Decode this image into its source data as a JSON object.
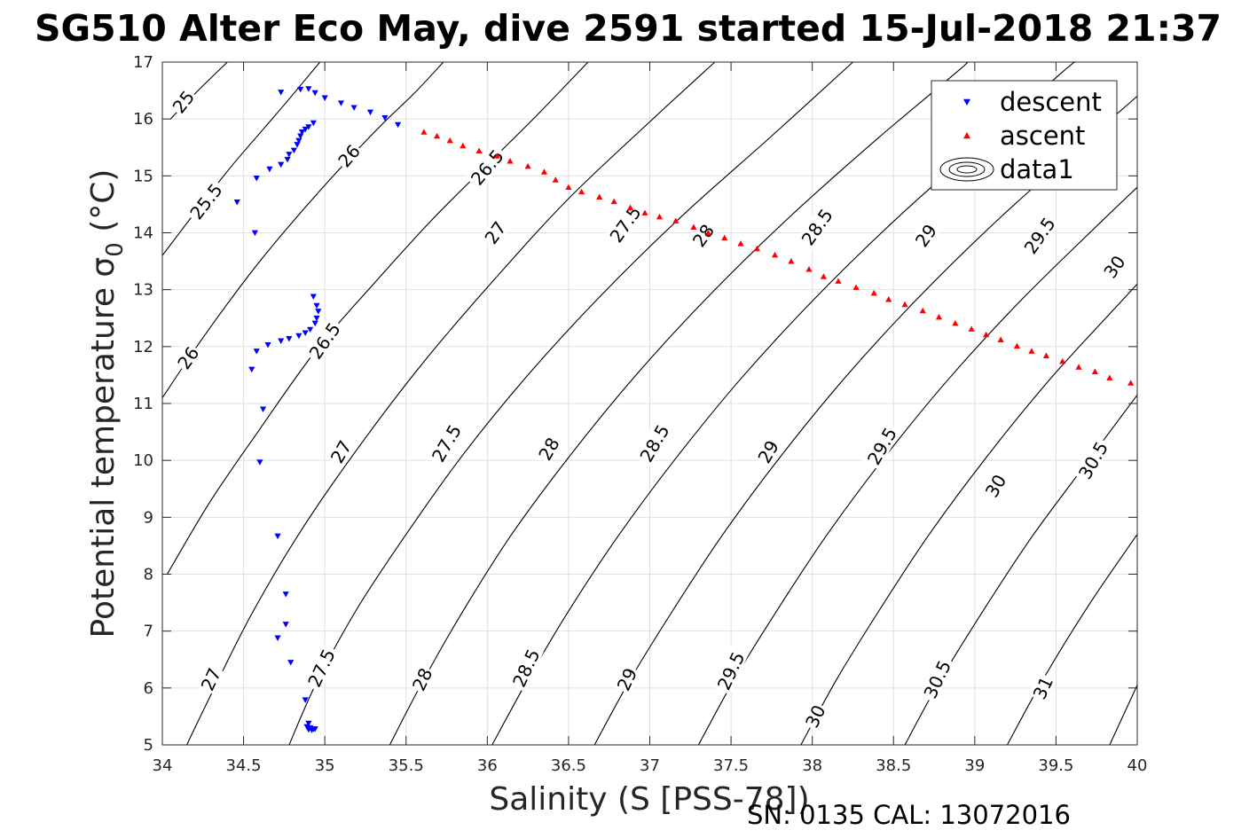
{
  "chart_data": {
    "type": "scatter",
    "title": "SG510 Alter Eco May, dive 2591 started 15-Jul-2018 21:37",
    "xlabel": "Salinity (S [PSS-78])",
    "ylabel_main": "Potential temperature σ",
    "ylabel_sub": "0",
    "ylabel_unit": " (°C)",
    "footer": "SN: 0135  CAL: 13072016",
    "xlim": [
      34,
      40
    ],
    "ylim": [
      5,
      17
    ],
    "xticks": [
      "34",
      "34.5",
      "35",
      "35.5",
      "36",
      "36.5",
      "37",
      "37.5",
      "38",
      "38.5",
      "39",
      "39.5",
      "40"
    ],
    "yticks": [
      "5",
      "6",
      "7",
      "8",
      "9",
      "10",
      "11",
      "12",
      "13",
      "14",
      "15",
      "16",
      "17"
    ],
    "grid": true,
    "legend_position": "top-right",
    "colors": {
      "descent": "#0000ff",
      "ascent": "#ff0000",
      "contour": "#000000",
      "grid": "#e0e0e0"
    },
    "series": [
      {
        "name": "descent",
        "marker": "triangle-down",
        "color": "#0000ff",
        "points": [
          [
            34.9,
            16.53
          ],
          [
            34.85,
            16.52
          ],
          [
            34.73,
            16.47
          ],
          [
            34.94,
            16.46
          ],
          [
            35.0,
            16.37
          ],
          [
            35.1,
            16.28
          ],
          [
            35.18,
            16.2
          ],
          [
            35.28,
            16.12
          ],
          [
            35.37,
            16.02
          ],
          [
            35.45,
            15.9
          ],
          [
            34.93,
            15.93
          ],
          [
            34.9,
            15.86
          ],
          [
            34.88,
            15.82
          ],
          [
            34.86,
            15.77
          ],
          [
            34.85,
            15.7
          ],
          [
            34.84,
            15.62
          ],
          [
            34.83,
            15.55
          ],
          [
            34.81,
            15.45
          ],
          [
            34.78,
            15.38
          ],
          [
            34.77,
            15.29
          ],
          [
            34.73,
            15.2
          ],
          [
            34.66,
            15.12
          ],
          [
            34.58,
            14.96
          ],
          [
            34.46,
            14.54
          ],
          [
            34.57,
            14.0
          ],
          [
            34.93,
            12.88
          ],
          [
            34.95,
            12.72
          ],
          [
            34.96,
            12.62
          ],
          [
            34.95,
            12.5
          ],
          [
            34.94,
            12.41
          ],
          [
            34.91,
            12.3
          ],
          [
            34.88,
            12.24
          ],
          [
            34.84,
            12.19
          ],
          [
            34.78,
            12.14
          ],
          [
            34.73,
            12.1
          ],
          [
            34.65,
            12.03
          ],
          [
            34.58,
            11.92
          ],
          [
            34.55,
            11.6
          ],
          [
            34.62,
            10.9
          ],
          [
            34.6,
            9.97
          ],
          [
            34.71,
            8.67
          ],
          [
            34.76,
            7.65
          ],
          [
            34.76,
            7.12
          ],
          [
            34.71,
            6.88
          ],
          [
            34.79,
            6.45
          ],
          [
            34.88,
            5.79
          ],
          [
            34.9,
            5.38
          ],
          [
            34.89,
            5.32
          ],
          [
            34.91,
            5.3
          ],
          [
            34.93,
            5.28
          ],
          [
            34.94,
            5.28
          ],
          [
            34.9,
            5.27
          ],
          [
            34.92,
            5.26
          ]
        ]
      },
      {
        "name": "ascent",
        "marker": "triangle-up",
        "color": "#ff0000",
        "points": [
          [
            35.61,
            15.77
          ],
          [
            35.69,
            15.7
          ],
          [
            35.77,
            15.62
          ],
          [
            35.85,
            15.53
          ],
          [
            35.95,
            15.44
          ],
          [
            36.06,
            15.35
          ],
          [
            36.14,
            15.26
          ],
          [
            36.25,
            15.17
          ],
          [
            36.35,
            15.07
          ],
          [
            36.42,
            14.93
          ],
          [
            36.5,
            14.8
          ],
          [
            36.58,
            14.72
          ],
          [
            36.69,
            14.63
          ],
          [
            36.78,
            14.55
          ],
          [
            36.88,
            14.44
          ],
          [
            36.97,
            14.35
          ],
          [
            37.06,
            14.28
          ],
          [
            37.16,
            14.21
          ],
          [
            37.27,
            14.1
          ],
          [
            37.36,
            14.0
          ],
          [
            37.46,
            13.91
          ],
          [
            37.56,
            13.81
          ],
          [
            37.66,
            13.72
          ],
          [
            37.77,
            13.61
          ],
          [
            37.87,
            13.5
          ],
          [
            37.98,
            13.36
          ],
          [
            38.07,
            13.23
          ],
          [
            38.16,
            13.15
          ],
          [
            38.27,
            13.04
          ],
          [
            38.38,
            12.94
          ],
          [
            38.47,
            12.83
          ],
          [
            38.57,
            12.74
          ],
          [
            38.68,
            12.63
          ],
          [
            38.78,
            12.52
          ],
          [
            38.88,
            12.41
          ],
          [
            38.98,
            12.31
          ],
          [
            39.07,
            12.21
          ],
          [
            39.16,
            12.12
          ],
          [
            39.26,
            12.01
          ],
          [
            39.35,
            11.92
          ],
          [
            39.44,
            11.84
          ],
          [
            39.54,
            11.74
          ],
          [
            39.64,
            11.64
          ],
          [
            39.74,
            11.56
          ],
          [
            39.83,
            11.45
          ],
          [
            39.96,
            11.36
          ]
        ]
      }
    ],
    "contour_series_name": "data1",
    "isopycnals": [
      {
        "level": "25",
        "points": [
          [
            34.05,
            16.0
          ],
          [
            34.22,
            16.5
          ],
          [
            34.4,
            17.0
          ]
        ]
      },
      {
        "level": "25.5",
        "points": [
          [
            34.0,
            13.6
          ],
          [
            34.2,
            14.35
          ],
          [
            34.42,
            15.15
          ],
          [
            34.63,
            15.85
          ],
          [
            34.78,
            16.35
          ],
          [
            34.97,
            17.0
          ]
        ]
      },
      {
        "level": "26",
        "points": [
          [
            34.0,
            11.1
          ],
          [
            34.2,
            11.95
          ],
          [
            34.4,
            12.75
          ],
          [
            34.6,
            13.5
          ],
          [
            34.85,
            14.35
          ],
          [
            35.1,
            15.15
          ],
          [
            35.35,
            15.9
          ],
          [
            35.55,
            16.45
          ],
          [
            35.73,
            17.0
          ]
        ]
      },
      {
        "level": "26.5",
        "points": [
          [
            34.03,
            8.0
          ],
          [
            34.3,
            9.3
          ],
          [
            34.6,
            10.55
          ],
          [
            34.95,
            11.95
          ],
          [
            35.3,
            13.1
          ],
          [
            35.65,
            14.2
          ],
          [
            36.0,
            15.2
          ],
          [
            36.3,
            16.05
          ],
          [
            36.62,
            17.0
          ]
        ]
      },
      {
        "level": "27",
        "points": [
          [
            34.15,
            5.0
          ],
          [
            34.32,
            6.0
          ],
          [
            34.55,
            7.3
          ],
          [
            34.85,
            8.75
          ],
          [
            35.2,
            10.2
          ],
          [
            35.6,
            11.7
          ],
          [
            36.05,
            13.2
          ],
          [
            36.5,
            14.6
          ],
          [
            37.0,
            15.95
          ],
          [
            37.4,
            17.0
          ]
        ]
      },
      {
        "level": "27.5",
        "points": [
          [
            34.78,
            5.0
          ],
          [
            34.95,
            6.1
          ],
          [
            35.2,
            7.4
          ],
          [
            35.5,
            8.7
          ],
          [
            35.85,
            10.1
          ],
          [
            36.25,
            11.5
          ],
          [
            36.7,
            12.9
          ],
          [
            37.2,
            14.3
          ],
          [
            37.75,
            15.7
          ],
          [
            38.25,
            17.0
          ]
        ]
      },
      {
        "level": "28",
        "points": [
          [
            35.4,
            5.0
          ],
          [
            35.6,
            6.1
          ],
          [
            35.85,
            7.35
          ],
          [
            36.15,
            8.7
          ],
          [
            36.5,
            10.05
          ],
          [
            36.9,
            11.45
          ],
          [
            37.35,
            12.85
          ],
          [
            37.85,
            14.25
          ],
          [
            38.4,
            15.65
          ],
          [
            38.9,
            16.85
          ],
          [
            38.95,
            17.0
          ]
        ]
      },
      {
        "level": "28.5",
        "points": [
          [
            36.03,
            5.0
          ],
          [
            36.25,
            6.15
          ],
          [
            36.5,
            7.35
          ],
          [
            36.8,
            8.65
          ],
          [
            37.15,
            10.0
          ],
          [
            37.55,
            11.4
          ],
          [
            38.0,
            12.8
          ],
          [
            38.5,
            14.2
          ],
          [
            39.05,
            15.6
          ],
          [
            39.55,
            16.85
          ],
          [
            39.62,
            17.0
          ]
        ]
      },
      {
        "level": "29",
        "points": [
          [
            36.66,
            5.0
          ],
          [
            36.88,
            6.15
          ],
          [
            37.15,
            7.4
          ],
          [
            37.45,
            8.7
          ],
          [
            37.8,
            10.05
          ],
          [
            38.2,
            11.45
          ],
          [
            38.65,
            12.85
          ],
          [
            39.15,
            14.25
          ],
          [
            39.7,
            15.65
          ],
          [
            40.0,
            16.4
          ]
        ]
      },
      {
        "level": "29.5",
        "points": [
          [
            37.3,
            5.0
          ],
          [
            37.52,
            6.15
          ],
          [
            37.78,
            7.35
          ],
          [
            38.08,
            8.65
          ],
          [
            38.43,
            10.0
          ],
          [
            38.83,
            11.4
          ],
          [
            39.28,
            12.8
          ],
          [
            39.78,
            14.2
          ],
          [
            40.0,
            14.8
          ]
        ]
      },
      {
        "level": "30",
        "points": [
          [
            37.93,
            5.0
          ],
          [
            38.15,
            6.15
          ],
          [
            38.42,
            7.4
          ],
          [
            38.72,
            8.7
          ],
          [
            39.07,
            10.05
          ],
          [
            39.47,
            11.45
          ],
          [
            39.92,
            12.85
          ],
          [
            40.0,
            13.1
          ]
        ]
      },
      {
        "level": "30.5",
        "points": [
          [
            38.57,
            5.0
          ],
          [
            38.78,
            6.1
          ],
          [
            39.05,
            7.35
          ],
          [
            39.35,
            8.65
          ],
          [
            39.7,
            10.0
          ],
          [
            40.0,
            11.15
          ]
        ]
      },
      {
        "level": "31",
        "points": [
          [
            39.2,
            5.0
          ],
          [
            39.42,
            6.15
          ],
          [
            39.7,
            7.45
          ],
          [
            40.0,
            8.7
          ]
        ]
      },
      {
        "level": "31.5",
        "points": [
          [
            39.83,
            5.0
          ],
          [
            40.0,
            6.05
          ]
        ]
      }
    ],
    "contour_labels": [
      {
        "text": "25",
        "at": [
          34.13,
          16.3
        ],
        "rot": -52
      },
      {
        "text": "25.5",
        "at": [
          34.27,
          14.55
        ],
        "rot": -52
      },
      {
        "text": "26",
        "at": [
          35.15,
          15.35
        ],
        "rot": -50
      },
      {
        "text": "26.5",
        "at": [
          36.0,
          15.15
        ],
        "rot": -50
      },
      {
        "text": "26",
        "at": [
          34.16,
          11.8
        ],
        "rot": -55
      },
      {
        "text": "26.5",
        "at": [
          35.0,
          12.1
        ],
        "rot": -55
      },
      {
        "text": "27",
        "at": [
          36.05,
          14.0
        ],
        "rot": -55
      },
      {
        "text": "27.5",
        "at": [
          36.85,
          14.15
        ],
        "rot": -55
      },
      {
        "text": "28",
        "at": [
          37.33,
          13.95
        ],
        "rot": -55
      },
      {
        "text": "28.5",
        "at": [
          38.03,
          14.1
        ],
        "rot": -55
      },
      {
        "text": "29",
        "at": [
          38.7,
          13.95
        ],
        "rot": -55
      },
      {
        "text": "29.5",
        "at": [
          39.4,
          13.95
        ],
        "rot": -55
      },
      {
        "text": "30",
        "at": [
          39.86,
          13.4
        ],
        "rot": -55
      },
      {
        "text": "27",
        "at": [
          35.1,
          10.15
        ],
        "rot": -60
      },
      {
        "text": "27.5",
        "at": [
          35.75,
          10.3
        ],
        "rot": -60
      },
      {
        "text": "28",
        "at": [
          36.38,
          10.2
        ],
        "rot": -60
      },
      {
        "text": "28.5",
        "at": [
          37.03,
          10.3
        ],
        "rot": -60
      },
      {
        "text": "29",
        "at": [
          37.73,
          10.15
        ],
        "rot": -60
      },
      {
        "text": "29.5",
        "at": [
          38.43,
          10.25
        ],
        "rot": -60
      },
      {
        "text": "30",
        "at": [
          39.13,
          9.55
        ],
        "rot": -60
      },
      {
        "text": "30.5",
        "at": [
          39.73,
          10.0
        ],
        "rot": -60
      },
      {
        "text": "27",
        "at": [
          34.3,
          6.15
        ],
        "rot": -65
      },
      {
        "text": "27.5",
        "at": [
          34.98,
          6.35
        ],
        "rot": -65
      },
      {
        "text": "28",
        "at": [
          35.6,
          6.15
        ],
        "rot": -65
      },
      {
        "text": "28.5",
        "at": [
          36.24,
          6.35
        ],
        "rot": -65
      },
      {
        "text": "29",
        "at": [
          36.86,
          6.15
        ],
        "rot": -65
      },
      {
        "text": "29.5",
        "at": [
          37.5,
          6.3
        ],
        "rot": -65
      },
      {
        "text": "30",
        "at": [
          38.02,
          5.5
        ],
        "rot": -65
      },
      {
        "text": "30.5",
        "at": [
          38.77,
          6.15
        ],
        "rot": -65
      },
      {
        "text": "31",
        "at": [
          39.42,
          6.0
        ],
        "rot": -65
      }
    ]
  }
}
